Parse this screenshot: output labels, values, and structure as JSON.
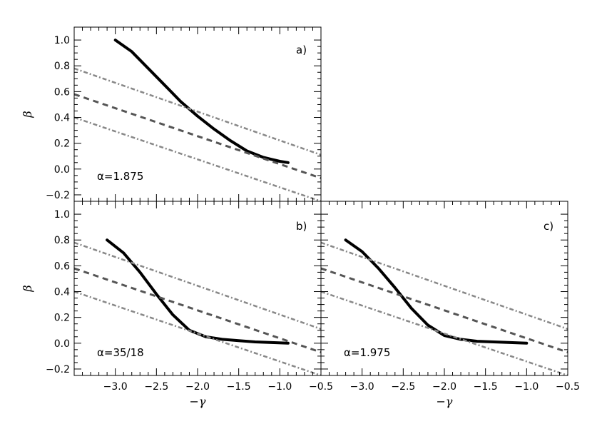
{
  "chart_data": [
    {
      "type": "line",
      "panel_label": "a)",
      "annotation": "α=1.875",
      "xlabel": "",
      "ylabel": "β",
      "xlim": [
        -3.5,
        -0.5
      ],
      "ylim": [
        -0.25,
        1.1
      ],
      "x_ticks": [],
      "y_ticks": [
        "1.0",
        "0.8",
        "0.6",
        "0.4",
        "0.2",
        "0.0",
        "−0.2"
      ],
      "series": [
        {
          "style": "solid-thick",
          "x": [
            -3.0,
            -2.8,
            -2.6,
            -2.4,
            -2.2,
            -2.0,
            -1.8,
            -1.6,
            -1.4,
            -1.2,
            -1.0,
            -0.9
          ],
          "y": [
            1.0,
            0.91,
            0.78,
            0.65,
            0.52,
            0.41,
            0.31,
            0.22,
            0.14,
            0.09,
            0.06,
            0.05
          ]
        },
        {
          "style": "dash-dot-upper",
          "x": [
            -3.5,
            -0.5
          ],
          "y": [
            0.78,
            0.11
          ]
        },
        {
          "style": "dashed-center",
          "x": [
            -3.5,
            -0.5
          ],
          "y": [
            0.58,
            -0.07
          ]
        },
        {
          "style": "dash-dot-lower",
          "x": [
            -3.5,
            -0.5
          ],
          "y": [
            0.4,
            -0.25
          ]
        }
      ]
    },
    {
      "type": "line",
      "panel_label": "b)",
      "annotation": "α=35/18",
      "xlabel": "−γ",
      "ylabel": "β",
      "xlim": [
        -3.5,
        -0.5
      ],
      "ylim": [
        -0.25,
        1.1
      ],
      "x_ticks": [
        "−3.0",
        "−2.5",
        "−2.0",
        "−1.5",
        "−1.0",
        "−0.5"
      ],
      "y_ticks": [
        "1.0",
        "0.8",
        "0.6",
        "0.4",
        "0.2",
        "0.0",
        "−0.2"
      ],
      "series": [
        {
          "style": "solid-thick",
          "x": [
            -3.1,
            -2.9,
            -2.7,
            -2.5,
            -2.3,
            -2.1,
            -1.9,
            -1.7,
            -1.5,
            -1.3,
            -1.1,
            -0.9
          ],
          "y": [
            0.8,
            0.7,
            0.55,
            0.38,
            0.22,
            0.1,
            0.05,
            0.03,
            0.02,
            0.01,
            0.005,
            0.0
          ]
        },
        {
          "style": "dash-dot-upper",
          "x": [
            -3.5,
            -0.5
          ],
          "y": [
            0.78,
            0.11
          ]
        },
        {
          "style": "dashed-center",
          "x": [
            -3.5,
            -0.5
          ],
          "y": [
            0.58,
            -0.07
          ]
        },
        {
          "style": "dash-dot-lower",
          "x": [
            -3.5,
            -0.5
          ],
          "y": [
            0.4,
            -0.25
          ]
        }
      ]
    },
    {
      "type": "line",
      "panel_label": "c)",
      "annotation": "α=1.975",
      "xlabel": "−γ",
      "ylabel": "",
      "xlim": [
        -3.5,
        -0.5
      ],
      "ylim": [
        -0.25,
        1.1
      ],
      "x_ticks": [
        "−3.0",
        "−2.5",
        "−2.0",
        "−1.5",
        "−1.0",
        "−0.5"
      ],
      "y_ticks": [],
      "series": [
        {
          "style": "solid-thick",
          "x": [
            -3.2,
            -3.0,
            -2.8,
            -2.6,
            -2.4,
            -2.2,
            -2.0,
            -1.8,
            -1.6,
            -1.4,
            -1.2,
            -1.0
          ],
          "y": [
            0.8,
            0.71,
            0.58,
            0.43,
            0.27,
            0.14,
            0.06,
            0.03,
            0.015,
            0.01,
            0.005,
            0.0
          ]
        },
        {
          "style": "dash-dot-upper",
          "x": [
            -3.5,
            -0.5
          ],
          "y": [
            0.78,
            0.11
          ]
        },
        {
          "style": "dashed-center",
          "x": [
            -3.5,
            -0.5
          ],
          "y": [
            0.58,
            -0.07
          ]
        },
        {
          "style": "dash-dot-lower",
          "x": [
            -3.5,
            -0.5
          ],
          "y": [
            0.4,
            -0.25
          ]
        }
      ]
    }
  ]
}
